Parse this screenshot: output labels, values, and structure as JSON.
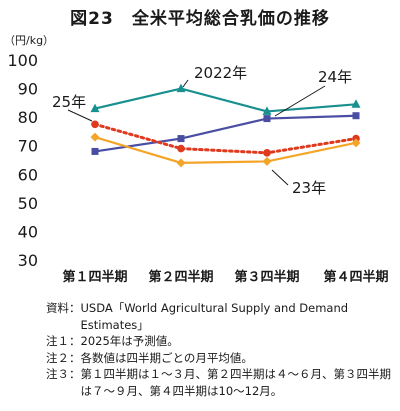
{
  "chart_data": {
    "type": "line",
    "title": "図23　全米平均総合乳価の推移",
    "unit": "（円/kg）",
    "categories": [
      "第１四半期",
      "第２四半期",
      "第３四半期",
      "第４四半期"
    ],
    "ylim": [
      30,
      100
    ],
    "yticks": [
      30,
      40,
      50,
      60,
      70,
      80,
      90,
      100
    ],
    "series": [
      {
        "name": "2022年",
        "values": [
          83,
          90,
          82,
          84.5
        ],
        "color": "#17908f",
        "marker": "triangle",
        "dash": false
      },
      {
        "name": "24年",
        "values": [
          68,
          72.5,
          79.5,
          80.5
        ],
        "color": "#4a4ea3",
        "marker": "square",
        "dash": false
      },
      {
        "name": "25年",
        "values": [
          77.5,
          69,
          67.5,
          72.5
        ],
        "color": "#e03a1e",
        "marker": "circle",
        "dash": true
      },
      {
        "name": "23年",
        "values": [
          73,
          64,
          64.5,
          71
        ],
        "color": "#f3a52a",
        "marker": "diamond",
        "dash": false
      }
    ]
  },
  "notes": [
    {
      "label": "資料：",
      "text": "USDA「World Agricultural Supply and Demand Estimates」"
    },
    {
      "label": "注１：",
      "text": "2025年は予測値。"
    },
    {
      "label": "注２：",
      "text": "各数値は四半期ごとの月平均値。"
    },
    {
      "label": "注３：",
      "text": "第１四半期は１～３月、第２四半期は４～６月、第３四半期は７～９月、第４四半期は10～12月。"
    }
  ]
}
